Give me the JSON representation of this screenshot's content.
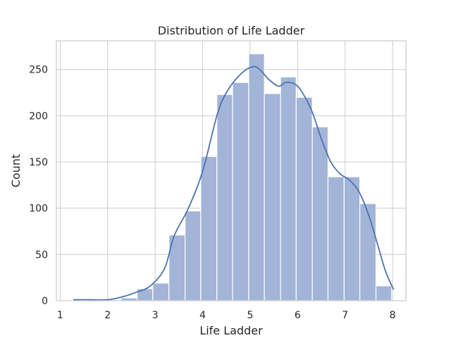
{
  "chart_data": {
    "type": "bar",
    "title": "Distribution of Life Ladder",
    "xlabel": "Life Ladder",
    "ylabel": "Count",
    "xlim": [
      0.92,
      8.28
    ],
    "ylim": [
      0,
      281
    ],
    "grid": true,
    "xticks": [
      1,
      2,
      3,
      4,
      5,
      6,
      7,
      8
    ],
    "yticks": [
      0,
      50,
      100,
      150,
      200,
      250
    ],
    "bin_edges": [
      1.28,
      1.61,
      1.95,
      2.28,
      2.62,
      2.95,
      3.29,
      3.63,
      3.96,
      4.3,
      4.63,
      4.97,
      5.3,
      5.64,
      5.97,
      6.31,
      6.64,
      6.98,
      7.31,
      7.65,
      7.98
    ],
    "values": [
      1,
      0,
      1,
      3,
      13,
      19,
      71,
      97,
      156,
      223,
      236,
      267,
      224,
      242,
      220,
      188,
      134,
      134,
      105,
      16
    ],
    "kde": {
      "x": [
        1.28,
        1.6,
        2.0,
        2.3,
        2.6,
        2.9,
        3.2,
        3.4,
        3.7,
        4.0,
        4.3,
        4.5,
        4.8,
        5.05,
        5.2,
        5.4,
        5.6,
        5.75,
        5.95,
        6.1,
        6.3,
        6.5,
        6.7,
        6.9,
        7.1,
        7.3,
        7.5,
        7.7,
        7.85,
        8.02
      ],
      "y": [
        1,
        1,
        1,
        4,
        9,
        16,
        35,
        70,
        100,
        140,
        200,
        225,
        245,
        253,
        250,
        239,
        232,
        236,
        234,
        225,
        205,
        175,
        150,
        137,
        130,
        117,
        92,
        58,
        32,
        12
      ]
    }
  }
}
